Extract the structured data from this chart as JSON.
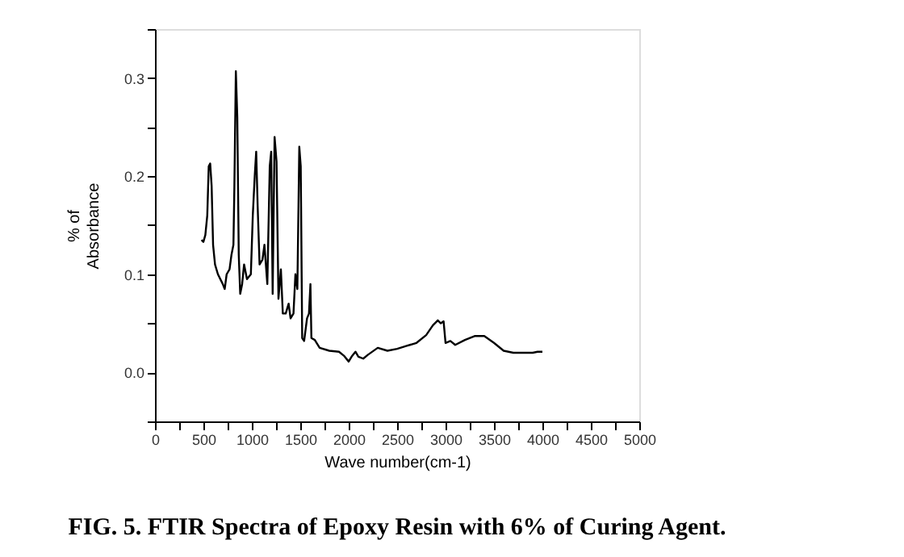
{
  "chart_data": {
    "type": "line",
    "title": "FIG. 5. FTIR Spectra of Epoxy Resin with 6% of Curing Agent.",
    "xlabel": "Wave number(cm-1)",
    "ylabel": "% of\nAbsorbance",
    "xlim": [
      0,
      5000
    ],
    "ylim": [
      -0.05,
      0.35
    ],
    "xticks": [
      0,
      {
        "value": 250,
        "label": null
      },
      500,
      {
        "value": 750,
        "label": null
      },
      1000,
      {
        "value": 1250,
        "label": null
      },
      1500,
      {
        "value": 1750,
        "label": null
      },
      2000,
      {
        "value": 2250,
        "label": null
      },
      2500,
      {
        "value": 2750,
        "label": null
      },
      3000,
      {
        "value": 3250,
        "label": null
      },
      3500,
      {
        "value": 3750,
        "label": null
      },
      4000,
      {
        "value": 4250,
        "label": null
      },
      4500,
      {
        "value": 4750,
        "label": null
      },
      5000
    ],
    "yticks": [
      {
        "value": -0.05,
        "label": null
      },
      {
        "value": 0,
        "label": "0.0"
      },
      {
        "value": 0.05,
        "label": null
      },
      0.1,
      {
        "value": 0.15,
        "label": null
      },
      0.2,
      {
        "value": 0.25,
        "label": null
      },
      0.3,
      {
        "value": 0.35,
        "label": null
      }
    ],
    "grid": false,
    "marker": "none",
    "line_style": "solid",
    "series": [
      {
        "color": "#000000",
        "x": [
          480,
          500,
          520,
          540,
          555,
          570,
          585,
          600,
          620,
          650,
          700,
          720,
          740,
          770,
          790,
          810,
          820,
          835,
          850,
          865,
          880,
          900,
          920,
          950,
          990,
          1010,
          1030,
          1045,
          1060,
          1080,
          1110,
          1130,
          1160,
          1185,
          1200,
          1215,
          1235,
          1255,
          1275,
          1300,
          1320,
          1350,
          1380,
          1400,
          1430,
          1450,
          1470,
          1490,
          1505,
          1520,
          1540,
          1570,
          1590,
          1605,
          1615,
          1650,
          1700,
          1800,
          1900,
          1950,
          2000,
          2030,
          2070,
          2100,
          2150,
          2200,
          2300,
          2400,
          2500,
          2600,
          2700,
          2800,
          2870,
          2920,
          2950,
          2980,
          3000,
          3050,
          3100,
          3200,
          3300,
          3400,
          3500,
          3600,
          3700,
          3800,
          3900,
          3950,
          4000
        ],
        "values": [
          0.135,
          0.133,
          0.14,
          0.16,
          0.21,
          0.213,
          0.19,
          0.13,
          0.11,
          0.1,
          0.09,
          0.085,
          0.1,
          0.105,
          0.12,
          0.13,
          0.19,
          0.307,
          0.26,
          0.12,
          0.08,
          0.09,
          0.11,
          0.095,
          0.1,
          0.16,
          0.2,
          0.225,
          0.17,
          0.11,
          0.115,
          0.13,
          0.09,
          0.21,
          0.225,
          0.08,
          0.24,
          0.215,
          0.075,
          0.105,
          0.06,
          0.06,
          0.07,
          0.055,
          0.06,
          0.1,
          0.085,
          0.23,
          0.21,
          0.035,
          0.032,
          0.055,
          0.06,
          0.09,
          0.035,
          0.033,
          0.025,
          0.022,
          0.021,
          0.017,
          0.011,
          0.016,
          0.021,
          0.016,
          0.014,
          0.018,
          0.025,
          0.022,
          0.024,
          0.027,
          0.03,
          0.038,
          0.048,
          0.053,
          0.05,
          0.052,
          0.03,
          0.032,
          0.028,
          0.033,
          0.037,
          0.037,
          0.03,
          0.022,
          0.02,
          0.02,
          0.02,
          0.021,
          0.021
        ]
      }
    ]
  }
}
